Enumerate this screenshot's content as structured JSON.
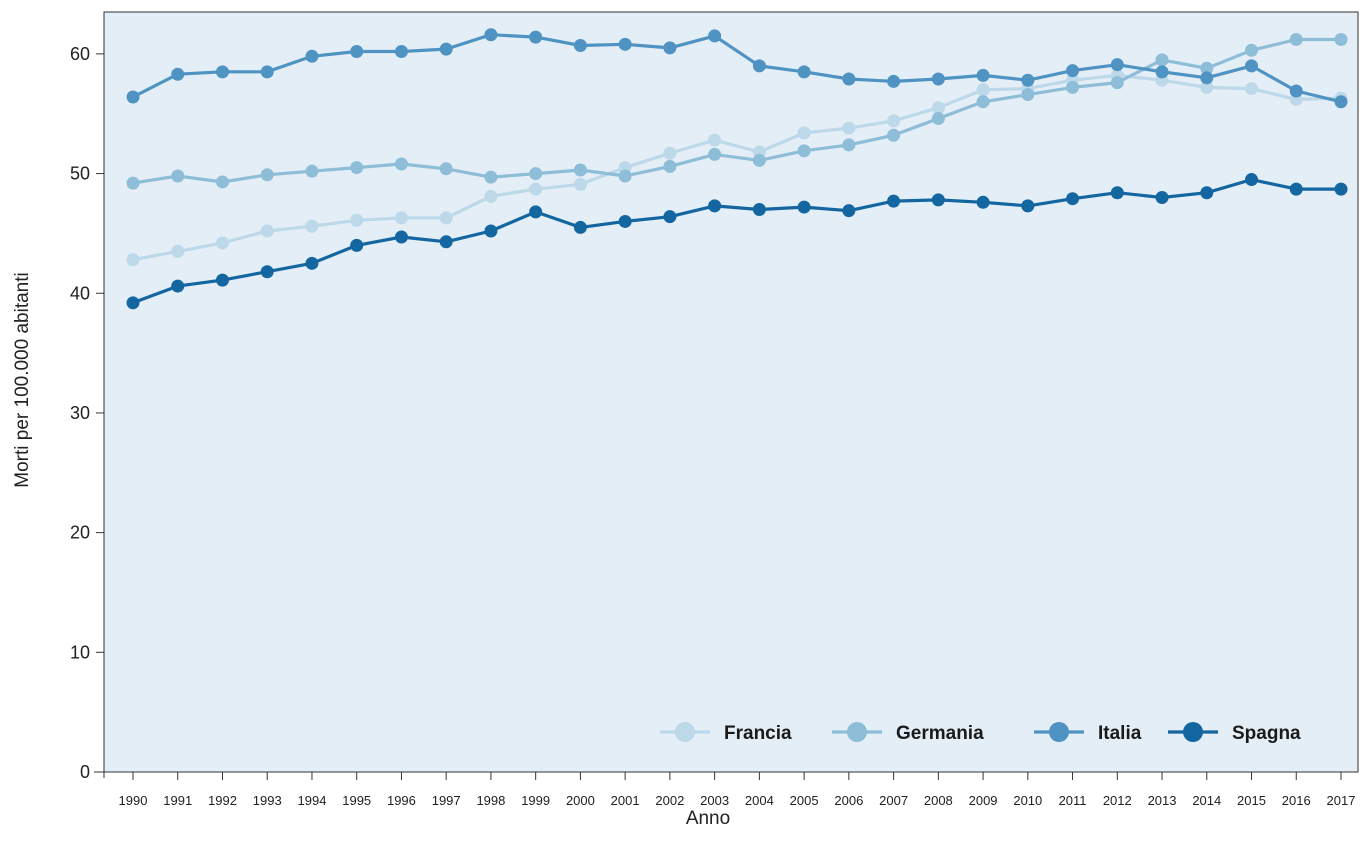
{
  "chart_data": {
    "type": "line",
    "title": "",
    "xlabel": "Anno",
    "ylabel": "Morti per 100.000 abitanti",
    "ylim": [
      0,
      63.5
    ],
    "yticks": [
      0,
      10,
      20,
      30,
      40,
      50,
      60
    ],
    "x": [
      "1990",
      "1991",
      "1992",
      "1993",
      "1994",
      "1995",
      "1996",
      "1997",
      "1998",
      "1999",
      "2000",
      "2001",
      "2002",
      "2003",
      "2004",
      "2005",
      "2006",
      "2007",
      "2008",
      "2009",
      "2010",
      "2011",
      "2012",
      "2013",
      "2014",
      "2015",
      "2016",
      "2017"
    ],
    "legend_position": "bottom-right",
    "background": "#e4eef7",
    "series": [
      {
        "name": "Francia",
        "color": "#bcd8e9",
        "values": [
          42.8,
          43.5,
          44.2,
          45.2,
          45.6,
          46.1,
          46.3,
          46.3,
          48.1,
          48.7,
          49.1,
          50.5,
          51.7,
          52.8,
          51.8,
          53.4,
          53.8,
          54.4,
          55.5,
          57.0,
          57.1,
          57.8,
          58.2,
          57.8,
          57.2,
          57.1,
          56.2,
          56.3
        ]
      },
      {
        "name": "Germania",
        "color": "#8ebdd8",
        "values": [
          49.2,
          49.8,
          49.3,
          49.9,
          50.2,
          50.5,
          50.8,
          50.4,
          49.7,
          50.0,
          50.3,
          49.8,
          50.6,
          51.6,
          51.1,
          51.9,
          52.4,
          53.2,
          54.6,
          56.0,
          56.6,
          57.2,
          57.6,
          59.5,
          58.8,
          60.3,
          61.2,
          61.2
        ]
      },
      {
        "name": "Italia",
        "color": "#4f93c3",
        "values": [
          56.4,
          58.3,
          58.5,
          58.5,
          59.8,
          60.2,
          60.2,
          60.4,
          61.6,
          61.4,
          60.7,
          60.8,
          60.5,
          61.5,
          59.0,
          58.5,
          57.9,
          57.7,
          57.9,
          58.2,
          57.8,
          58.6,
          59.1,
          58.5,
          58.0,
          59.0,
          56.9,
          56.0
        ]
      },
      {
        "name": "Spagna",
        "color": "#1466a0",
        "values": [
          39.2,
          40.6,
          41.1,
          41.8,
          42.5,
          44.0,
          44.7,
          44.3,
          45.2,
          46.8,
          45.5,
          46.0,
          46.4,
          47.3,
          47.0,
          47.2,
          46.9,
          47.7,
          47.8,
          47.6,
          47.3,
          47.9,
          48.4,
          48.0,
          48.4,
          49.5,
          48.7,
          48.7
        ]
      }
    ]
  }
}
